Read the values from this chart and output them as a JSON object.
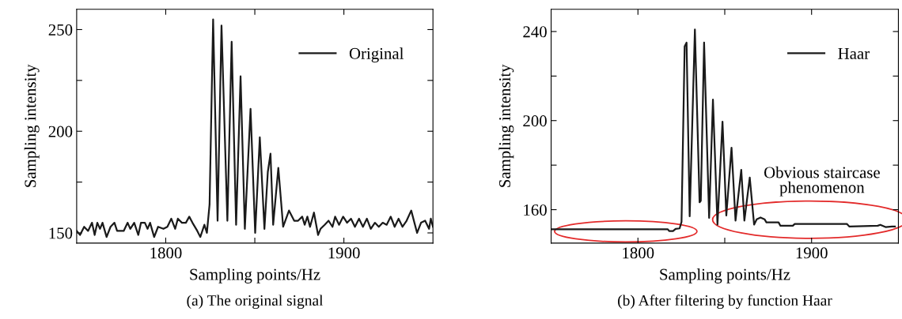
{
  "chart_data": [
    {
      "type": "line",
      "title": "(a) The original signal",
      "xlabel": "Sampling points/Hz",
      "ylabel": "Sampling intensity",
      "xlim": [
        1750,
        1950
      ],
      "xticks": [
        1800,
        {
          "value": 1850,
          "label": null
        },
        1900
      ],
      "ylim": [
        145,
        260
      ],
      "yticks": [
        150,
        {
          "value": 175,
          "label": null
        },
        200,
        {
          "value": 225,
          "label": null
        },
        250
      ],
      "legend": "top right",
      "grid": false,
      "marker": "none",
      "line_style": "solid",
      "series": [
        {
          "name": "Original",
          "color": "#1a1a1a",
          "x": [
            1750.0,
            1751.9,
            1754.2,
            1756.4,
            1758.6,
            1760.1,
            1761.6,
            1763.1,
            1764.5,
            1766.8,
            1769.0,
            1771.2,
            1772.7,
            1776.4,
            1778.6,
            1780.1,
            1782.3,
            1784.6,
            1786.1,
            1788.3,
            1789.8,
            1791.2,
            1793.5,
            1795.7,
            1798.7,
            1800.9,
            1803.1,
            1805.3,
            1806.8,
            1809.1,
            1811.3,
            1813.2,
            1815.0,
            1817.7,
            1819.4,
            1821.7,
            1823.1,
            1824.6,
            1826.6,
            1829.1,
            1831.3,
            1834.6,
            1837.0,
            1839.5,
            1842.0,
            1844.4,
            1847.6,
            1850.2,
            1852.8,
            1855.4,
            1857.3,
            1858.8,
            1860.3,
            1863.2,
            1865.9,
            1869.2,
            1872.1,
            1874.3,
            1876.6,
            1878.0,
            1879.5,
            1881.0,
            1883.2,
            1885.5,
            1886.9,
            1889.2,
            1891.4,
            1893.6,
            1895.1,
            1897.3,
            1899.6,
            1901.8,
            1904.0,
            1906.2,
            1908.5,
            1910.7,
            1912.9,
            1915.1,
            1917.4,
            1919.6,
            1921.8,
            1924.0,
            1926.3,
            1928.5,
            1930.7,
            1932.9,
            1935.2,
            1937.8,
            1939.6,
            1941.1,
            1943.3,
            1945.6,
            1947.8,
            1948.8,
            1950.0
          ],
          "values": [
            151,
            149,
            153,
            151,
            155,
            149,
            155,
            152,
            155,
            148,
            153,
            155,
            151,
            151,
            155,
            152,
            155,
            149,
            155,
            155,
            152,
            155,
            148,
            153,
            152,
            153,
            157,
            152,
            157,
            155,
            155,
            158,
            155,
            151,
            148,
            154,
            150,
            164,
            255,
            156,
            252,
            156,
            244,
            154,
            227,
            152,
            211,
            150,
            197,
            152,
            180,
            189,
            154,
            182,
            153,
            161,
            156,
            156,
            158,
            154,
            158,
            153,
            160,
            149,
            152,
            154,
            156,
            153,
            158,
            154,
            158,
            155,
            157,
            153,
            157,
            153,
            157,
            152,
            155,
            153,
            155,
            154,
            158,
            153,
            157,
            153,
            156,
            161,
            155,
            150,
            155,
            156,
            152,
            157,
            153
          ]
        }
      ]
    },
    {
      "type": "line",
      "title": "(b) After filtering by function Haar",
      "xlabel": "Sampling points/Hz",
      "ylabel": "Sampling intensity",
      "xlim": [
        1750,
        1950
      ],
      "xticks": [
        1800,
        {
          "value": 1850,
          "label": null
        },
        1900
      ],
      "ylim": [
        145,
        250
      ],
      "yticks": [
        160,
        {
          "value": 180,
          "label": null
        },
        200,
        {
          "value": 220,
          "label": null
        },
        240
      ],
      "legend": "top right",
      "grid": false,
      "marker": "none",
      "line_style": "solid",
      "annotations": [
        "Obvious staircase\nphenomenon"
      ],
      "series": [
        {
          "name": "Haar",
          "color": "#1a1a1a",
          "x": [
            1750.0,
            1817.2,
            1818.0,
            1820.2,
            1821.7,
            1824.0,
            1825.1,
            1826.9,
            1828.0,
            1829.8,
            1832.8,
            1835.5,
            1836.2,
            1838.1,
            1841.0,
            1843.2,
            1845.8,
            1848.7,
            1850.9,
            1853.9,
            1856.2,
            1859.5,
            1861.3,
            1864.4,
            1866.9,
            1868.4,
            1870.6,
            1872.9,
            1874.0,
            1881.0,
            1882.0,
            1889.2,
            1890.3,
            1920.3,
            1921.8,
            1938.1,
            1939.6,
            1942.6,
            1946.3,
            1948.0
          ],
          "values": [
            151.2,
            151.2,
            150.4,
            150.4,
            151.4,
            151.6,
            154.5,
            233.3,
            235.0,
            157.0,
            240.9,
            163.3,
            164.0,
            235.1,
            156.3,
            209.4,
            153.3,
            199.5,
            157.4,
            187.8,
            155.1,
            177.9,
            155.1,
            174.4,
            153.3,
            155.7,
            156.5,
            155.7,
            154.3,
            154.3,
            152.8,
            152.8,
            153.6,
            153.6,
            152.4,
            152.8,
            153.2,
            152.2,
            152.4,
            152.4
          ]
        }
      ]
    }
  ]
}
